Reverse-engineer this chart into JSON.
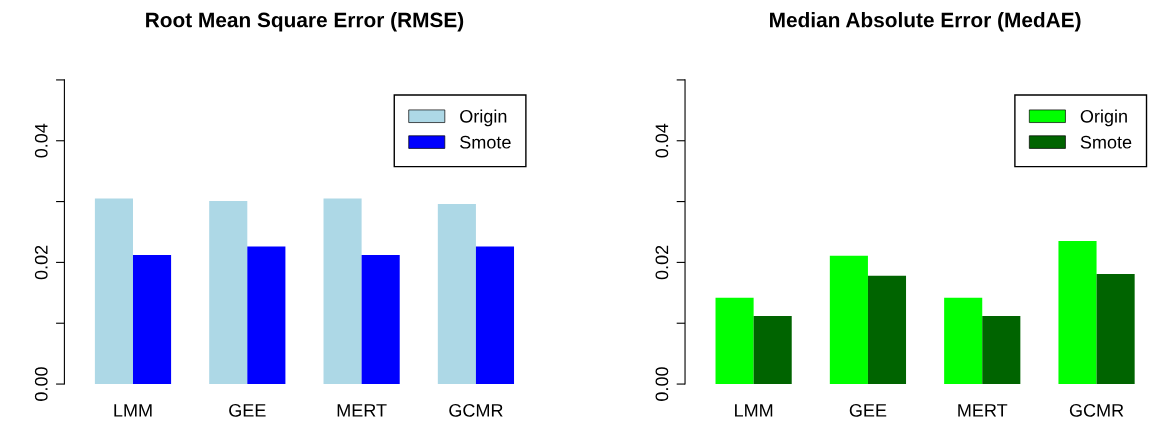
{
  "chart_data": [
    {
      "type": "bar",
      "title": "Root Mean Square Error (RMSE)",
      "categories": [
        "LMM",
        "GEE",
        "MERT",
        "GCMR"
      ],
      "series": [
        {
          "name": "Origin",
          "color": "#add8e6",
          "values": [
            0.0305,
            0.0301,
            0.0305,
            0.0296
          ]
        },
        {
          "name": "Smote",
          "color": "#0000ff",
          "values": [
            0.0212,
            0.0226,
            0.0212,
            0.0226
          ]
        }
      ],
      "ylim": [
        0,
        0.05
      ],
      "yticks": [
        {
          "value": 0,
          "label": "0.00"
        },
        {
          "value": 0.01,
          "label": null
        },
        {
          "value": 0.02,
          "label": "0.02"
        },
        {
          "value": 0.03,
          "label": null
        },
        {
          "value": 0.04,
          "label": "0.04"
        },
        {
          "value": 0.05,
          "label": null
        }
      ],
      "grid": false,
      "legend": "top right"
    },
    {
      "type": "bar",
      "title": "Median Absolute Error (MedAE)",
      "categories": [
        "LMM",
        "GEE",
        "MERT",
        "GCMR"
      ],
      "series": [
        {
          "name": "Origin",
          "color": "#00ff00",
          "values": [
            0.0142,
            0.0211,
            0.0142,
            0.0235
          ]
        },
        {
          "name": "Smote",
          "color": "#006400",
          "values": [
            0.0112,
            0.0178,
            0.0112,
            0.0181
          ]
        }
      ],
      "ylim": [
        0,
        0.05
      ],
      "yticks": [
        {
          "value": 0,
          "label": "0.00"
        },
        {
          "value": 0.01,
          "label": null
        },
        {
          "value": 0.02,
          "label": "0.02"
        },
        {
          "value": 0.03,
          "label": null
        },
        {
          "value": 0.04,
          "label": "0.04"
        },
        {
          "value": 0.05,
          "label": null
        }
      ],
      "grid": false,
      "legend": "top right"
    }
  ]
}
